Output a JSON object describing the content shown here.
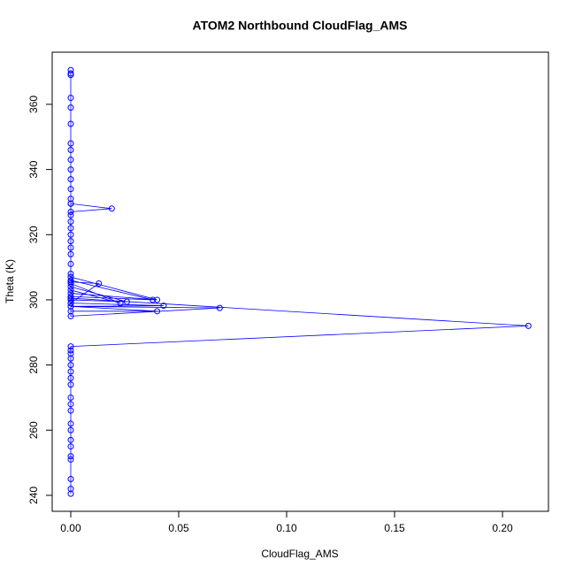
{
  "chart_data": {
    "type": "line",
    "title": "ATOM2 Northbound CloudFlag_AMS",
    "x_label": "CloudFlag_AMS",
    "y_label": "Theta (K)",
    "color": "#0000ff",
    "xlim": [
      -0.0086,
      0.2213
    ],
    "ylim": [
      235.1,
      376.0
    ],
    "xticks": [
      {
        "value": 0,
        "label": "0.00"
      },
      0.05,
      {
        "value": 0.1,
        "label": "0.10"
      },
      0.15,
      {
        "value": 0.2,
        "label": "0.20"
      }
    ],
    "yticks": [
      240,
      260,
      280,
      300,
      320,
      340,
      360
    ],
    "x": [
      0,
      0,
      0,
      0,
      0,
      0,
      0,
      0,
      0,
      0,
      0,
      0,
      0,
      0,
      0,
      0,
      0,
      0,
      0,
      0,
      0.212,
      0,
      0,
      0.069,
      0,
      0,
      0.04,
      0,
      0,
      0.038,
      0,
      0,
      0.04,
      0,
      0.043,
      0,
      0,
      0.026,
      0,
      0,
      0.023,
      0,
      0,
      0.013,
      0,
      0,
      0,
      0,
      0,
      0,
      0,
      0,
      0,
      0,
      0,
      0,
      0.019,
      0,
      0,
      0,
      0,
      0,
      0,
      0,
      0,
      0,
      0,
      0,
      0,
      0,
      0
    ],
    "y": [
      240.5,
      242,
      245,
      251,
      252,
      255,
      257,
      260,
      262,
      266,
      268,
      270,
      274,
      276,
      278,
      280,
      282,
      283.5,
      284.5,
      285.7,
      292,
      300.5,
      295,
      297.5,
      298,
      307,
      300,
      302,
      306,
      300,
      301,
      296.5,
      296.5,
      298,
      298.2,
      299,
      304,
      299.4,
      300,
      305,
      299,
      303,
      305.5,
      305,
      299,
      308,
      311,
      314,
      316,
      318,
      320,
      322,
      324,
      326,
      329.5,
      329.5,
      328,
      327,
      331,
      334,
      337,
      340,
      343,
      346,
      348,
      354,
      359,
      362,
      369,
      369.5,
      370.5
    ]
  }
}
